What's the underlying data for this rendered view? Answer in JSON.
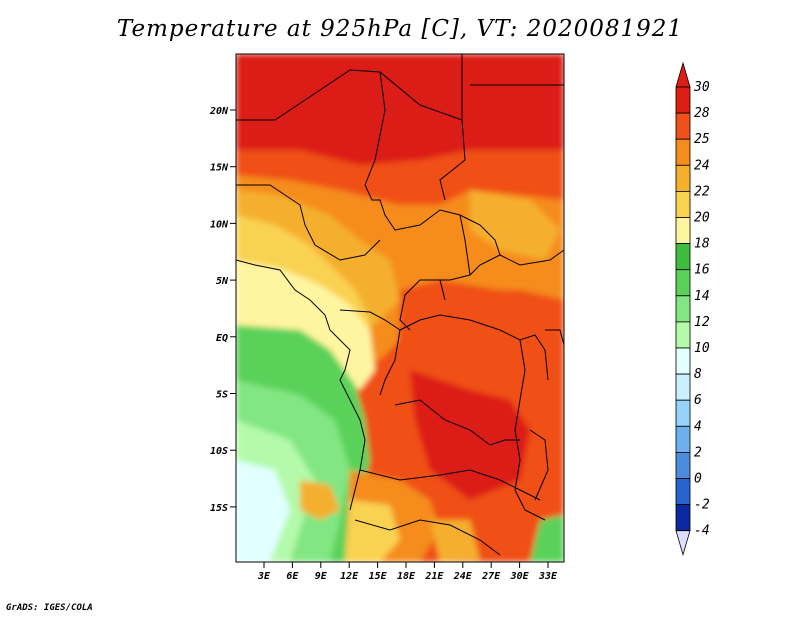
{
  "title": "Temperature at 925hPa [C], VT: 2020081921",
  "footer": "GrADS: IGES/COLA",
  "map": {
    "lat_ticks": [
      "20N",
      "15N",
      "10N",
      "5N",
      "EQ",
      "5S",
      "10S",
      "15S"
    ],
    "lon_ticks": [
      "3E",
      "6E",
      "9E",
      "12E",
      "15E",
      "18E",
      "21E",
      "24E",
      "27E",
      "30E",
      "33E"
    ]
  },
  "colorbar": {
    "labels": [
      "30",
      "28",
      "25",
      "24",
      "22",
      "20",
      "18",
      "16",
      "14",
      "12",
      "10",
      "8",
      "6",
      "4",
      "2",
      "0",
      "-2",
      "-4"
    ],
    "colors": [
      "#a50a0a",
      "#dc1e14",
      "#f05019",
      "#f58c1e",
      "#f5af2d",
      "#fad251",
      "#fff5a0",
      "#faffcc",
      "#3cbe3c",
      "#5ad25a",
      "#82e682",
      "#b4faaa",
      "#e1ffff",
      "#c8f0ff",
      "#96d2fa",
      "#6eaff0",
      "#4b8cdc",
      "#2864cd",
      "#1446b4",
      "#0a28a0",
      "#00147d",
      "#dcdcff"
    ]
  }
}
